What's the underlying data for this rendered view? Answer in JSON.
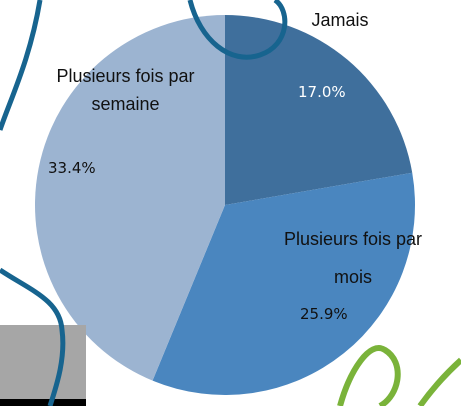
{
  "chart_data": {
    "type": "pie",
    "categories": [
      "Jamais",
      "Plusieurs fois par mois",
      "Plusieurs fois par semaine"
    ],
    "values": [
      17.0,
      25.9,
      33.4
    ],
    "value_labels": [
      "17.0%",
      "25.9%",
      "33.4%"
    ],
    "colors": [
      "#3f6f9c",
      "#4a86bf",
      "#9cb4d1"
    ]
  }
}
